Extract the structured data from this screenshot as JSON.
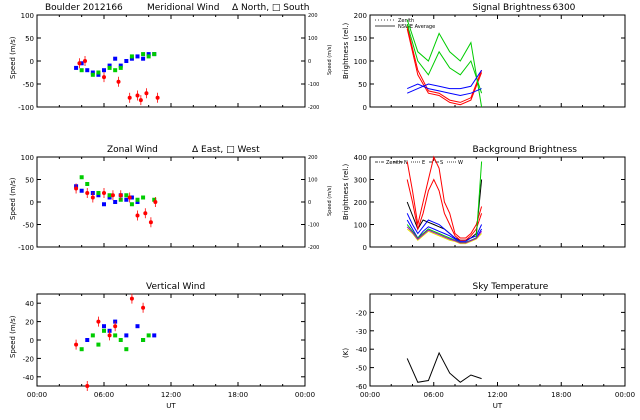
{
  "page_title": "Boulder  2012166",
  "colors": {
    "north": "#0000ff",
    "south": "#ff0000",
    "east": "#00ff00",
    "west": "#ff0000"
  },
  "chart_data": [
    {
      "id": "meridional",
      "type": "scatter",
      "title": "Meridional Wind",
      "legend_text": "Δ North, □ South",
      "ylabel": "Speed (m/s)",
      "ylim": [
        -100,
        100
      ],
      "yticks": [
        100,
        50,
        0,
        -50,
        -100
      ],
      "xlim": [
        0,
        24
      ],
      "xticks": [
        "00:00",
        "06:00",
        "12:00",
        "18:00",
        "00:00"
      ],
      "y2label": "Speed (m/s)",
      "y2ticks": [
        "200",
        "100",
        "0",
        "-100",
        "-200"
      ],
      "series": [
        {
          "name": "blue",
          "color": "#0000ff",
          "x": [
            3.5,
            4.0,
            4.5,
            5.0,
            5.5,
            6.0,
            6.5,
            7.0,
            7.5,
            8.0,
            8.5,
            9.0,
            9.5,
            10.0,
            10.5
          ],
          "y": [
            -15,
            -5,
            -20,
            -25,
            -30,
            -20,
            -10,
            5,
            -10,
            0,
            5,
            10,
            5,
            15,
            15
          ]
        },
        {
          "name": "green",
          "color": "#00cc00",
          "x": [
            4.0,
            5.0,
            5.5,
            6.5,
            7.0,
            7.5,
            8.5,
            9.5,
            10.0,
            10.5
          ],
          "y": [
            -20,
            -30,
            -25,
            -15,
            -20,
            -15,
            10,
            15,
            10,
            15
          ]
        },
        {
          "name": "red",
          "color": "#ff0000",
          "x": [
            3.8,
            4.3,
            6.0,
            7.3,
            8.3,
            9.0,
            9.3,
            9.8,
            10.8
          ],
          "y": [
            -5,
            0,
            -35,
            -45,
            -80,
            -75,
            -85,
            -70,
            -80
          ]
        }
      ]
    },
    {
      "id": "zonal",
      "type": "scatter",
      "title": "Zonal Wind",
      "legend_text": "Δ East, □ West",
      "ylabel": "Speed (m/s)",
      "ylim": [
        -100,
        100
      ],
      "yticks": [
        100,
        50,
        0,
        -50,
        -100
      ],
      "xlim": [
        0,
        24
      ],
      "xticks": [
        "00:00",
        "06:00",
        "12:00",
        "18:00",
        "00:00"
      ],
      "y2label": "Speed (m/s)",
      "y2ticks": [
        "200",
        "100",
        "0",
        "-100",
        "-200"
      ],
      "series": [
        {
          "name": "blue",
          "color": "#0000ff",
          "x": [
            3.5,
            4.0,
            5.0,
            5.5,
            6.0,
            6.5,
            7.0,
            7.5,
            8.0,
            8.5,
            9.0
          ],
          "y": [
            35,
            25,
            20,
            15,
            -5,
            10,
            0,
            15,
            5,
            10,
            0
          ]
        },
        {
          "name": "green",
          "color": "#00cc00",
          "x": [
            4.0,
            4.5,
            5.5,
            6.5,
            7.5,
            8.0,
            8.5,
            9.0,
            9.5,
            10.5
          ],
          "y": [
            55,
            40,
            20,
            15,
            5,
            15,
            -5,
            5,
            10,
            5
          ]
        },
        {
          "name": "red",
          "color": "#ff0000",
          "x": [
            3.5,
            4.5,
            5.0,
            6.0,
            6.8,
            7.5,
            8.3,
            9.0,
            9.7,
            10.2,
            10.6
          ],
          "y": [
            30,
            20,
            10,
            20,
            15,
            15,
            10,
            -30,
            -25,
            -45,
            0
          ]
        }
      ]
    },
    {
      "id": "vertical",
      "type": "scatter",
      "title": "Vertical Wind",
      "ylabel": "Speed (m/s)",
      "ylim": [
        -50,
        50
      ],
      "yticks": [
        40,
        20,
        0,
        -20,
        -40
      ],
      "xlim": [
        0,
        24
      ],
      "xticks": [
        "00:00",
        "06:00",
        "12:00",
        "18:00",
        "00:00"
      ],
      "xlabel": "UT",
      "series": [
        {
          "name": "blue",
          "color": "#0000ff",
          "x": [
            4.5,
            6.0,
            6.5,
            7.0,
            8.0,
            9.0,
            9.5,
            10.5
          ],
          "y": [
            0,
            15,
            10,
            20,
            5,
            15,
            0,
            5
          ]
        },
        {
          "name": "green",
          "color": "#00cc00",
          "x": [
            4.0,
            5.0,
            5.5,
            6.0,
            7.0,
            7.5,
            8.0,
            9.5,
            10.0
          ],
          "y": [
            -10,
            5,
            -5,
            10,
            5,
            0,
            -10,
            0,
            5
          ]
        },
        {
          "name": "red",
          "color": "#ff0000",
          "x": [
            3.5,
            4.5,
            5.5,
            6.5,
            7.0,
            8.5,
            9.5
          ],
          "y": [
            -5,
            -50,
            20,
            5,
            15,
            45,
            35
          ]
        }
      ]
    },
    {
      "id": "signal",
      "type": "line",
      "title": "Signal Brightness",
      "subtitle": "6300",
      "ylabel": "Brightness (rel.)",
      "ylim": [
        0,
        200
      ],
      "yticks": [
        200,
        150,
        100,
        50,
        0
      ],
      "xlim": [
        0,
        24
      ],
      "xticks": [
        "00:00",
        "06:00",
        "12:00",
        "18:00",
        "00:00"
      ],
      "legend": [
        "Zenith",
        "NSWE Average"
      ],
      "series": [
        {
          "name": "red1",
          "color": "#ff0000",
          "x": [
            3.5,
            4.5,
            5.5,
            6.5,
            7.5,
            8.5,
            9.5,
            10.5
          ],
          "y": [
            175,
            80,
            35,
            30,
            15,
            10,
            20,
            80
          ]
        },
        {
          "name": "red2",
          "color": "#ff0000",
          "x": [
            3.5,
            4.5,
            5.5,
            6.5,
            7.5,
            8.5,
            9.5,
            10.5
          ],
          "y": [
            170,
            70,
            30,
            25,
            10,
            5,
            15,
            75
          ]
        },
        {
          "name": "green1",
          "color": "#00cc00",
          "x": [
            3.5,
            4.5,
            5.5,
            6.5,
            7.5,
            8.5,
            9.5,
            10.5
          ],
          "y": [
            190,
            120,
            100,
            160,
            120,
            100,
            140,
            0
          ]
        },
        {
          "name": "green2",
          "color": "#00cc00",
          "x": [
            3.5,
            4.5,
            5.5,
            6.5,
            7.5,
            8.5,
            9.5,
            10.5
          ],
          "y": [
            180,
            100,
            70,
            120,
            85,
            70,
            100,
            30
          ]
        },
        {
          "name": "blue1",
          "color": "#0000ff",
          "x": [
            3.5,
            4.5,
            5.5,
            6.5,
            7.5,
            8.5,
            9.5,
            10.5
          ],
          "y": [
            40,
            50,
            40,
            35,
            30,
            25,
            30,
            40
          ]
        },
        {
          "name": "blue2",
          "color": "#0000ff",
          "x": [
            3.5,
            4.5,
            5.5,
            6.5,
            7.5,
            8.5,
            9.5,
            10.5
          ],
          "y": [
            30,
            40,
            50,
            45,
            40,
            40,
            45,
            80
          ]
        }
      ]
    },
    {
      "id": "background",
      "type": "line",
      "title": "Background Brightness",
      "ylabel": "Brightness (rel.)",
      "ylim": [
        0,
        400
      ],
      "yticks": [
        400,
        300,
        200,
        100,
        0
      ],
      "xlim": [
        0,
        24
      ],
      "xticks": [
        "00:00",
        "06:00",
        "12:00",
        "18:00",
        "00:00"
      ],
      "legend": [
        "Zenith",
        "N",
        "E",
        "S",
        "W"
      ],
      "series": [
        {
          "name": "black",
          "color": "#000000",
          "x": [
            3.5,
            4.0,
            4.5,
            5.0,
            5.5,
            6.0,
            6.5,
            7.0,
            7.5,
            8.0,
            8.5,
            9.0,
            9.5,
            10.0,
            10.5
          ],
          "y": [
            200,
            140,
            80,
            120,
            110,
            100,
            90,
            80,
            60,
            40,
            30,
            30,
            40,
            60,
            300
          ]
        },
        {
          "name": "red1",
          "color": "#ff0000",
          "x": [
            3.5,
            4.0,
            4.5,
            5.0,
            5.5,
            6.0,
            6.5,
            7.0,
            7.5,
            8.0,
            8.5,
            9.0,
            9.5,
            10.0,
            10.5
          ],
          "y": [
            380,
            250,
            100,
            200,
            300,
            420,
            350,
            200,
            150,
            60,
            40,
            40,
            60,
            100,
            180
          ]
        },
        {
          "name": "red2",
          "color": "#ff0000",
          "x": [
            3.5,
            4.0,
            4.5,
            5.0,
            5.5,
            6.0,
            6.5,
            7.0,
            7.5,
            8.0,
            8.5,
            9.0,
            9.5,
            10.0,
            10.5
          ],
          "y": [
            300,
            200,
            80,
            150,
            250,
            300,
            250,
            150,
            100,
            50,
            30,
            30,
            50,
            80,
            150
          ]
        },
        {
          "name": "blue1",
          "color": "#0000ff",
          "x": [
            3.5,
            4.0,
            4.5,
            5.0,
            5.5,
            6.0,
            6.5,
            7.0,
            7.5,
            8.0,
            8.5,
            9.0,
            9.5,
            10.0,
            10.5
          ],
          "y": [
            150,
            100,
            60,
            90,
            120,
            110,
            100,
            80,
            60,
            40,
            25,
            25,
            40,
            50,
            100
          ]
        },
        {
          "name": "blue2",
          "color": "#0000ff",
          "x": [
            3.5,
            4.0,
            4.5,
            5.0,
            5.5,
            6.0,
            6.5,
            7.0,
            7.5,
            8.0,
            8.5,
            9.0,
            9.5,
            10.0,
            10.5
          ],
          "y": [
            120,
            80,
            40,
            70,
            90,
            80,
            70,
            60,
            50,
            35,
            20,
            20,
            30,
            40,
            80
          ]
        },
        {
          "name": "green",
          "color": "#00cc00",
          "x": [
            3.5,
            4.0,
            4.5,
            5.0,
            5.5,
            6.0,
            6.5,
            7.0,
            7.5,
            8.0,
            8.5,
            9.0,
            9.5,
            10.0,
            10.5
          ],
          "y": [
            100,
            70,
            40,
            60,
            80,
            70,
            60,
            50,
            40,
            30,
            20,
            20,
            30,
            40,
            380
          ]
        },
        {
          "name": "yellow",
          "color": "#e6e600",
          "x": [
            3.5,
            4.0,
            4.5,
            5.0,
            5.5,
            6.0,
            6.5,
            7.0,
            7.5,
            8.0,
            8.5,
            9.0,
            9.5,
            10.0,
            10.5
          ],
          "y": [
            80,
            60,
            30,
            50,
            70,
            60,
            50,
            40,
            30,
            25,
            15,
            15,
            25,
            35,
            60
          ]
        },
        {
          "name": "purple",
          "color": "#9900cc",
          "x": [
            3.5,
            4.0,
            4.5,
            5.0,
            5.5,
            6.0,
            6.5,
            7.0,
            7.5,
            8.0,
            8.5,
            9.0,
            9.5,
            10.0,
            10.5
          ],
          "y": [
            90,
            65,
            35,
            55,
            75,
            65,
            55,
            45,
            35,
            28,
            18,
            18,
            28,
            38,
            70
          ]
        }
      ]
    },
    {
      "id": "sky",
      "type": "line",
      "title": "Sky Temperature",
      "ylabel": "(K)",
      "ylim": [
        -60,
        -10
      ],
      "yticks": [
        -20,
        -30,
        -40,
        -50,
        -60
      ],
      "xlim": [
        0,
        24
      ],
      "xticks": [
        "00:00",
        "06:00",
        "12:00",
        "18:00",
        "00:00"
      ],
      "xlabel": "UT",
      "series": [
        {
          "name": "black",
          "color": "#000000",
          "x": [
            3.5,
            4.5,
            5.5,
            6.5,
            7.5,
            8.5,
            9.5,
            10.5
          ],
          "y": [
            -45,
            -58,
            -57,
            -42,
            -53,
            -58,
            -54,
            -56
          ]
        }
      ]
    }
  ]
}
